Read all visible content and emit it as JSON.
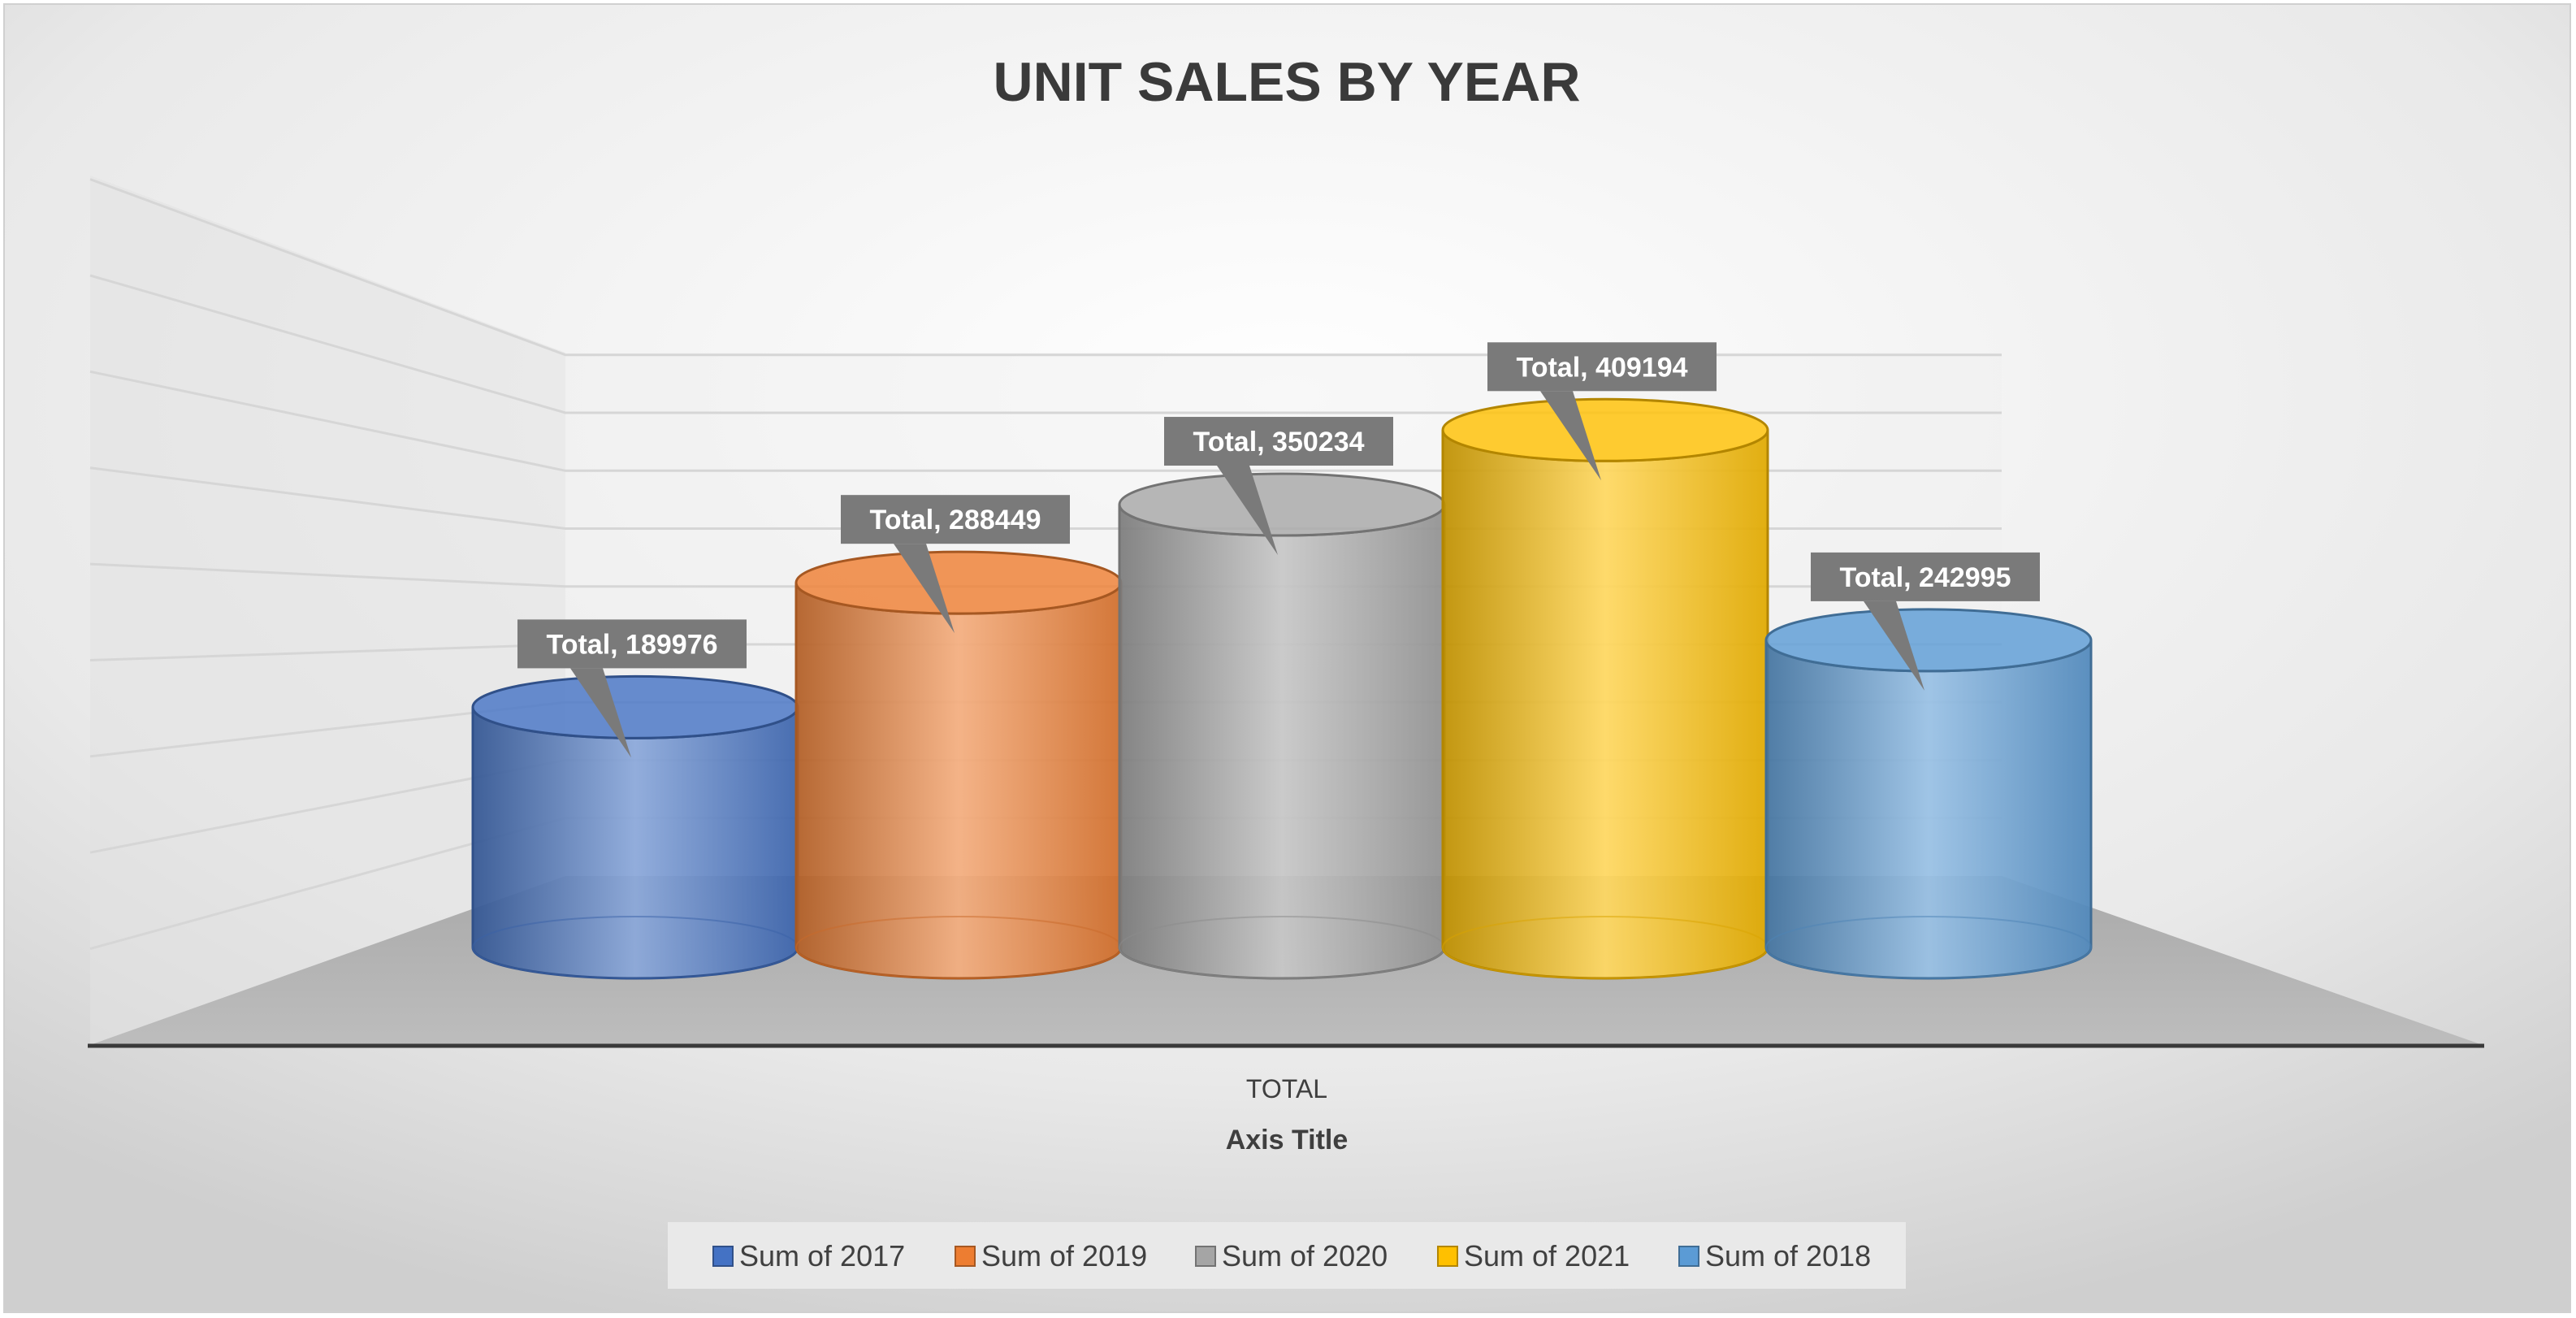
{
  "chart_data": {
    "type": "bar",
    "style": "3d-cylinder",
    "title": "UNIT SALES BY YEAR",
    "categories": [
      "TOTAL"
    ],
    "xlabel": "Axis Title",
    "ylabel": "",
    "ylim": [
      0,
      450000
    ],
    "grid": true,
    "legend_position": "bottom",
    "series": [
      {
        "name": "Sum of 2017",
        "values": [
          189976
        ],
        "color": "#4472C4",
        "data_label": "Total, 189976"
      },
      {
        "name": "Sum of 2019",
        "values": [
          288449
        ],
        "color": "#ED7D31",
        "data_label": "Total, 288449"
      },
      {
        "name": "Sum of 2020",
        "values": [
          350234
        ],
        "color": "#A5A5A5",
        "data_label": "Total, 350234"
      },
      {
        "name": "Sum of 2021",
        "values": [
          409194
        ],
        "color": "#FFC000",
        "data_label": "Total, 409194"
      },
      {
        "name": "Sum of 2018",
        "values": [
          242995
        ],
        "color": "#5B9BD5",
        "data_label": "Total, 242995"
      }
    ]
  }
}
